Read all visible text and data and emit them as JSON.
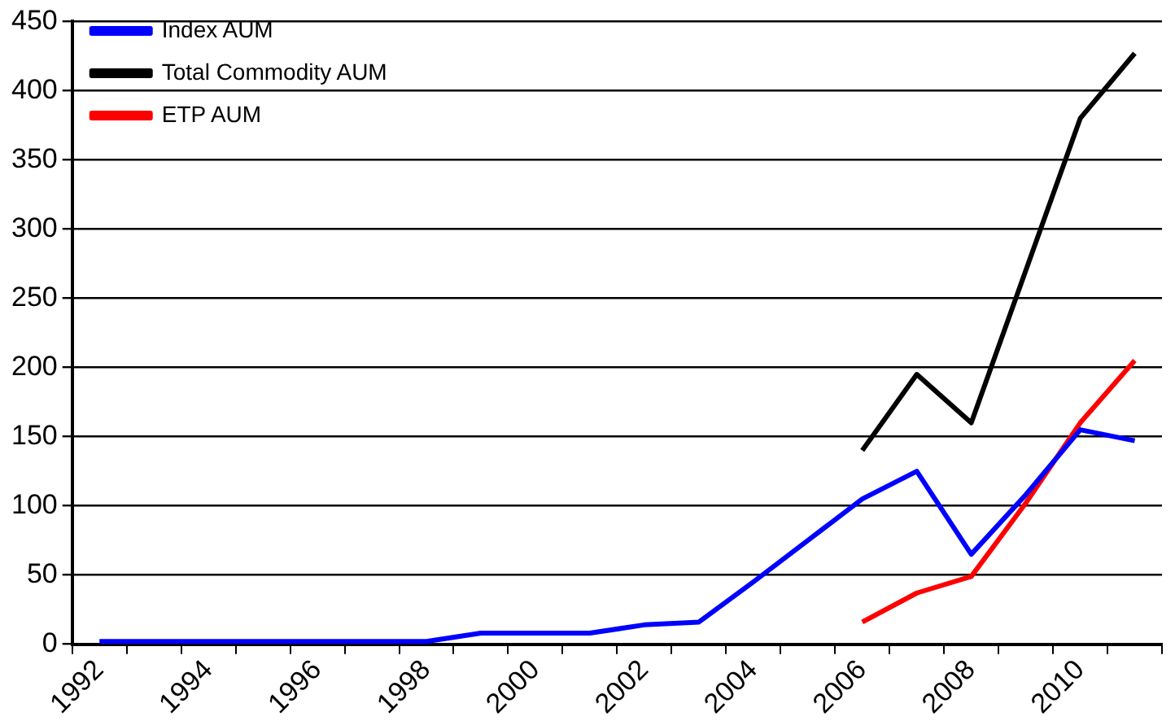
{
  "chart_data": {
    "type": "line",
    "categories": [
      "1992",
      null,
      "1994",
      null,
      "1996",
      null,
      "1998",
      null,
      "2000",
      null,
      "2002",
      null,
      "2004",
      null,
      "2006",
      null,
      "2008",
      null,
      "2010",
      null
    ],
    "series": [
      {
        "name": "Index AUM",
        "color": "#0000ff",
        "values": [
          2,
          2,
          2,
          2,
          2,
          2,
          2,
          8,
          8,
          8,
          14,
          16,
          45,
          75,
          105,
          125,
          65,
          108,
          155,
          147
        ]
      },
      {
        "name": "Total Commodity AUM",
        "color": "#000000",
        "values": [
          null,
          null,
          null,
          null,
          null,
          null,
          null,
          null,
          null,
          null,
          null,
          null,
          null,
          null,
          140,
          195,
          160,
          270,
          380,
          427
        ]
      },
      {
        "name": "ETP AUM",
        "color": "#ff0000",
        "values": [
          null,
          null,
          null,
          null,
          null,
          null,
          null,
          null,
          null,
          null,
          null,
          null,
          null,
          null,
          16,
          37,
          49,
          102,
          160,
          205
        ]
      }
    ],
    "ylim": [
      0,
      450
    ],
    "yticks": [
      0,
      50,
      100,
      150,
      200,
      250,
      300,
      350,
      400,
      450
    ],
    "grid": "y",
    "legend": "top left",
    "marker": "none",
    "line_style": "solid"
  }
}
